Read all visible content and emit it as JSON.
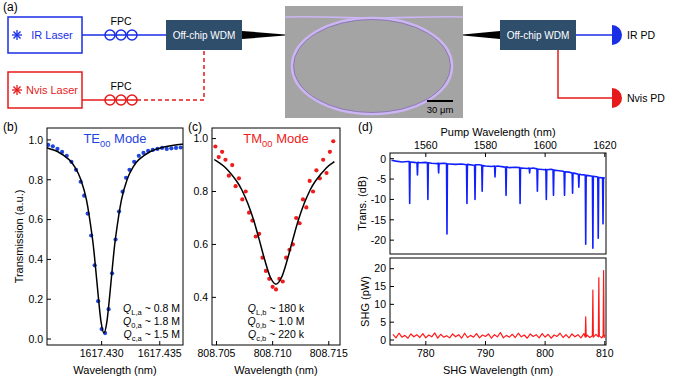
{
  "panel_a": {
    "panel": "(a)",
    "ir_laser": "IR Laser",
    "nvis_laser": "Nvis Laser",
    "fpc_ir": "FPC",
    "fpc_nvis": "FPC",
    "wdm_in": "Off-chip WDM",
    "wdm_out": "Off-chip WDM",
    "scale_bar": "30 μm",
    "ir_pd": "IR PD",
    "nvis_pd": "Nvis PD"
  },
  "chart_data": [
    {
      "panel": "(b)",
      "type": "scatter",
      "title": {
        "base": "TE",
        "sub": "00",
        "rest": " Mode"
      },
      "x_label": "Wavelength (nm)",
      "y_label": "Transmission (a.u.)",
      "xlim": [
        1617.4253,
        1617.437
      ],
      "ylim": [
        -0.03,
        1.06
      ],
      "xticks": [
        {
          "value": 1617.43,
          "label": "1617.430"
        },
        1617.435
      ],
      "yticks": [
        {
          "value": 0,
          "label": "0.0"
        },
        0.2,
        0.4,
        0.6,
        0.8,
        {
          "value": 1,
          "label": "1.0"
        }
      ],
      "annotations": [
        {
          "base": "Q",
          "sub": "L,a",
          "rest": " ~ 0.8 M"
        },
        {
          "base": "Q",
          "sub": "0,a",
          "rest": " ~ 1.8 M"
        },
        {
          "base": "Q",
          "sub": "c,a",
          "rest": " ~ 1.5 M"
        }
      ],
      "series": [
        {
          "type": "scatter",
          "marker": "circle",
          "color": "#1f45e0",
          "x": [
            1617.4254,
            1617.4258,
            1617.4262,
            1617.4266,
            1617.427,
            1617.4274,
            1617.4278,
            1617.4282,
            1617.4285,
            1617.4288,
            1617.4291,
            1617.4294,
            1617.4297,
            1617.43,
            1617.4303,
            1617.4306,
            1617.4309,
            1617.4312,
            1617.4315,
            1617.4318,
            1617.4321,
            1617.4324,
            1617.4328,
            1617.4332,
            1617.4336,
            1617.434,
            1617.4344,
            1617.4348,
            1617.4352,
            1617.4356,
            1617.436,
            1617.4364,
            1617.4368
          ],
          "values": [
            0.975,
            0.968,
            0.955,
            0.94,
            0.92,
            0.89,
            0.85,
            0.79,
            0.72,
            0.63,
            0.52,
            0.37,
            0.19,
            0.05,
            0.03,
            0.15,
            0.33,
            0.5,
            0.64,
            0.74,
            0.81,
            0.85,
            0.89,
            0.92,
            0.935,
            0.945,
            0.95,
            0.955,
            0.96,
            0.955,
            0.958,
            0.96,
            0.962
          ]
        },
        {
          "type": "line",
          "line_style": "solid",
          "color": "#000000",
          "x": [
            1617.4252,
            1617.4262,
            1617.4272,
            1617.4277,
            1617.4282,
            1617.4287,
            1617.4292,
            1617.42945,
            1617.4297,
            1617.42995,
            1617.4302,
            1617.43045,
            1617.4307,
            1617.43095,
            1617.4312,
            1617.4317,
            1617.4322,
            1617.4327,
            1617.4332,
            1617.4342,
            1617.4352,
            1617.4362,
            1617.437
          ],
          "values": [
            0.962,
            0.942,
            0.901,
            0.864,
            0.803,
            0.698,
            0.51,
            0.375,
            0.221,
            0.086,
            0.03,
            0.086,
            0.221,
            0.375,
            0.51,
            0.698,
            0.803,
            0.864,
            0.901,
            0.942,
            0.962,
            0.973,
            0.979
          ]
        }
      ]
    },
    {
      "panel": "(c)",
      "type": "scatter",
      "title": {
        "base": "TM",
        "sub": "00",
        "rest": " Mode"
      },
      "x_label": "Wavelength (nm)",
      "xlim": [
        808.7046,
        808.716
      ],
      "ylim": [
        0.22,
        1.04
      ],
      "xticks": [
        808.705,
        {
          "value": 808.71,
          "label": "808.710"
        },
        808.715
      ],
      "yticks": [
        0.4,
        0.6,
        0.8,
        {
          "value": 1,
          "label": "1.0"
        }
      ],
      "annotations": [
        {
          "base": "Q",
          "sub": "L,b",
          "rest": " ~ 180 k"
        },
        {
          "base": "Q",
          "sub": "0,b",
          "rest": " ~ 1.0 M"
        },
        {
          "base": "Q",
          "sub": "c,b",
          "rest": " ~ 220 k"
        }
      ],
      "series": [
        {
          "type": "scatter",
          "marker": "circle",
          "color": "#ee1c1c",
          "x": [
            808.7049,
            808.7052,
            808.7055,
            808.7058,
            808.7061,
            808.7064,
            808.7067,
            808.707,
            808.7073,
            808.7076,
            808.7079,
            808.7082,
            808.7085,
            808.7088,
            808.7091,
            808.7094,
            808.7097,
            808.71,
            808.7103,
            808.7106,
            808.7109,
            808.7112,
            808.7115,
            808.7118,
            808.7121,
            808.7124,
            808.7127,
            808.713,
            808.7133,
            808.7136,
            808.7139,
            808.7142,
            808.7145,
            808.7148,
            808.7151,
            808.7154
          ],
          "values": [
            0.97,
            0.93,
            0.95,
            0.92,
            0.86,
            0.9,
            0.82,
            0.85,
            0.77,
            0.8,
            0.72,
            0.69,
            0.63,
            0.64,
            0.55,
            0.5,
            0.47,
            0.44,
            0.43,
            0.47,
            0.46,
            0.55,
            0.58,
            0.6,
            0.7,
            0.68,
            0.77,
            0.74,
            0.84,
            0.8,
            0.88,
            0.85,
            0.92,
            0.87,
            0.95,
            0.99
          ]
        },
        {
          "type": "line",
          "line_style": "solid",
          "color": "#000000",
          "x": [
            808.7048,
            808.7058,
            808.7068,
            808.7073,
            808.7078,
            808.7083,
            808.7088,
            808.7093,
            808.7098,
            808.7103,
            808.7108,
            808.7113,
            808.7118,
            808.7123,
            808.7128,
            808.7133,
            808.7138,
            808.7148,
            808.7155
          ],
          "values": [
            0.921,
            0.89,
            0.839,
            0.802,
            0.754,
            0.693,
            0.619,
            0.541,
            0.476,
            0.45,
            0.476,
            0.541,
            0.619,
            0.693,
            0.754,
            0.802,
            0.839,
            0.89,
            0.913
          ]
        }
      ]
    },
    {
      "panel": "(d)",
      "type": "line",
      "x_label": "Pump Wavelength (nm)",
      "y_label": "Trans. (dB)",
      "xlim": [
        1548,
        1620.4
      ],
      "ylim": [
        -23.4,
        1.4
      ],
      "xticks": [
        1560,
        1580,
        1600,
        1620
      ],
      "yticks": [
        0,
        -5,
        -10,
        -15,
        -20
      ],
      "series": [
        {
          "color": "#1020ff",
          "x": [
            1548.5,
            1550,
            1552,
            1554,
            1554.45,
            1554.6,
            1554.75,
            1556,
            1557.05,
            1557.2,
            1557.35,
            1558,
            1560,
            1560.55,
            1560.7,
            1560.85,
            1562,
            1564,
            1564.15,
            1564.3,
            1564.45,
            1566,
            1566.95,
            1567.1,
            1567.25,
            1568,
            1570,
            1572,
            1573.65,
            1573.8,
            1573.95,
            1576,
            1576.35,
            1576.5,
            1576.65,
            1578,
            1578.75,
            1578.9,
            1579.05,
            1580,
            1582,
            1583.05,
            1583.2,
            1583.35,
            1584,
            1586,
            1586.75,
            1586.9,
            1587.05,
            1588,
            1590,
            1591.45,
            1591.6,
            1591.75,
            1592,
            1594,
            1594.65,
            1594.8,
            1594.95,
            1596,
            1597.25,
            1597.4,
            1597.55,
            1598,
            1600,
            1600.25,
            1600.4,
            1600.55,
            1602,
            1602.65,
            1602.8,
            1602.95,
            1604,
            1606,
            1606.35,
            1606.5,
            1606.65,
            1608,
            1609.05,
            1609.2,
            1609.35,
            1610,
            1611.15,
            1611.3,
            1611.45,
            1612,
            1613.45,
            1613.6,
            1613.75,
            1614,
            1615.85,
            1616,
            1616.15,
            1617.65,
            1617.8,
            1617.95,
            1619.25,
            1619.4,
            1619.55,
            1620
          ],
          "values": [
            -0.4,
            -0.6,
            -0.8,
            -0.7,
            -0.7,
            -11,
            -0.8,
            -0.9,
            -1.0,
            -4,
            -0.9,
            -1.0,
            -0.9,
            -1.0,
            -10,
            -1.0,
            -1.1,
            -1.2,
            -1.1,
            -3.5,
            -1.2,
            -1.1,
            -1.2,
            -18.5,
            -1.3,
            -1.3,
            -1.4,
            -1.3,
            -1.5,
            -11,
            -1.4,
            -1.6,
            -1.6,
            -10,
            -1.5,
            -1.5,
            -1.6,
            -8,
            -1.7,
            -1.8,
            -1.9,
            -1.8,
            -4.5,
            -1.9,
            -1.8,
            -2.0,
            -2.1,
            -9,
            -2.0,
            -2.2,
            -2.1,
            -2.2,
            -11,
            -2.3,
            -2.3,
            -2.4,
            -2.3,
            -3.5,
            -2.4,
            -2.3,
            -2.5,
            -8,
            -2.6,
            -2.6,
            -2.7,
            -2.6,
            -10,
            -2.7,
            -2.6,
            -2.7,
            -9,
            -2.8,
            -2.9,
            -3.1,
            -3.2,
            -9,
            -3.2,
            -3.3,
            -3.5,
            -8.5,
            -3.5,
            -3.6,
            -3.8,
            -7,
            -3.8,
            -3.9,
            -4.0,
            -21,
            -4.1,
            -4.1,
            -4.3,
            -22,
            -4.3,
            -4.5,
            -19.5,
            -4.6,
            -4.7,
            -16,
            -4.7,
            -4.8
          ]
        }
      ]
    },
    {
      "type": "line",
      "x_label": "SHG Wavelength (nm)",
      "y_label": "SHG (pW)",
      "xlim": [
        774,
        810.2
      ],
      "ylim": [
        -1.4,
        23
      ],
      "xticks": [
        780,
        790,
        800,
        810
      ],
      "yticks": [
        0,
        5,
        10,
        15,
        20
      ],
      "series": [
        {
          "color": "#ff1a1a",
          "x": [
            774.5,
            775,
            775.5,
            776,
            776.5,
            777,
            777.5,
            778,
            778.5,
            779,
            779.5,
            780,
            780.5,
            781,
            781.5,
            782,
            782.5,
            783,
            783.5,
            784,
            784.5,
            785,
            785.5,
            786,
            786.5,
            787,
            787.5,
            788,
            788.5,
            789,
            789.5,
            790,
            790.5,
            791,
            791.5,
            792,
            792.5,
            793,
            793.5,
            794,
            794.5,
            795,
            795.5,
            796,
            796.5,
            797,
            797.5,
            798,
            798.5,
            799,
            799.5,
            800,
            800.5,
            801,
            801.5,
            802,
            802.5,
            803,
            803.5,
            804,
            804.5,
            805,
            805.5,
            806,
            806.5,
            806.72,
            806.8,
            806.88,
            807,
            807.5,
            807.92,
            808,
            808.08,
            808.5,
            808.92,
            809,
            809.08,
            809.5,
            809.72,
            809.8,
            809.88,
            810
          ],
          "values": [
            1.6,
            0.6,
            1.9,
            0.8,
            1.3,
            0.5,
            1.7,
            0.9,
            1.5,
            0.7,
            1.8,
            0.6,
            1.4,
            0.9,
            2.0,
            0.5,
            1.6,
            0.8,
            1.2,
            0.6,
            1.7,
            0.9,
            1.5,
            0.5,
            1.9,
            0.7,
            1.3,
            0.8,
            1.8,
            0.6,
            1.4,
            1.0,
            1.7,
            0.5,
            1.5,
            0.9,
            2.1,
            0.6,
            1.3,
            0.8,
            1.6,
            0.7,
            1.9,
            0.9,
            1.4,
            0.5,
            1.7,
            1.0,
            1.5,
            0.6,
            1.8,
            0.8,
            1.6,
            0.5,
            1.4,
            1.0,
            1.9,
            0.7,
            1.5,
            0.6,
            1.7,
            0.9,
            1.5,
            0.6,
            1.8,
            0.8,
            6.5,
            0.9,
            1.4,
            0.7,
            1.2,
            14,
            0.8,
            1.6,
            0.9,
            17.5,
            1.1,
            0.6,
            1.3,
            19.5,
            0.7,
            1.5
          ]
        }
      ]
    }
  ]
}
